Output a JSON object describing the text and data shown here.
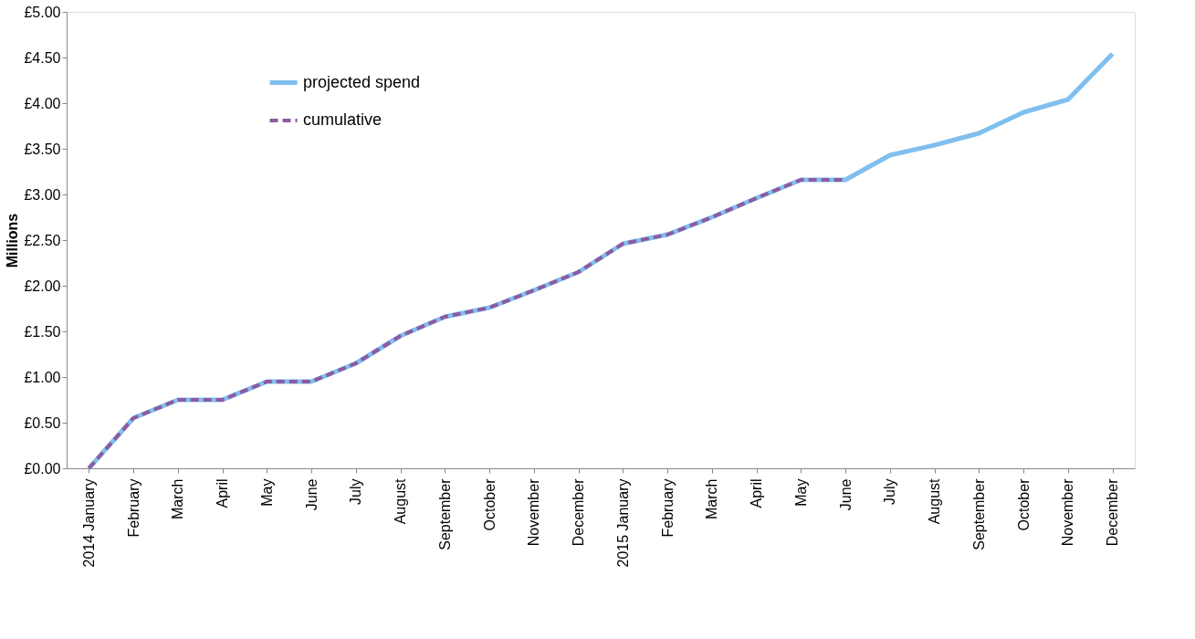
{
  "chart_data": {
    "type": "line",
    "ylabel": "Millions",
    "categories": [
      "2014 January",
      "February",
      "March",
      "April",
      "May",
      "June",
      "July",
      "August",
      "September",
      "October",
      "November",
      "December",
      "2015 January",
      "February",
      "March",
      "April",
      "May",
      "June",
      "July",
      "August",
      "September",
      "October",
      "November",
      "December"
    ],
    "series": [
      {
        "name": "projected spend",
        "color": "#7fbfef",
        "line_style": "solid",
        "values": [
          0,
          0.55,
          0.75,
          0.75,
          0.95,
          0.95,
          1.15,
          1.45,
          1.66,
          1.76,
          1.95,
          2.15,
          2.46,
          2.56,
          2.75,
          2.96,
          3.16,
          3.16,
          3.43,
          3.54,
          3.67,
          3.9,
          4.04,
          4.54
        ]
      },
      {
        "name": "cumulative",
        "color": "#8e5aa0",
        "line_style": "dashed",
        "values": [
          0,
          0.55,
          0.75,
          0.75,
          0.95,
          0.95,
          1.15,
          1.45,
          1.66,
          1.76,
          1.95,
          2.15,
          2.46,
          2.56,
          2.75,
          2.96,
          3.16,
          3.16,
          null,
          null,
          null,
          null,
          null,
          null
        ]
      }
    ],
    "ylim": [
      0,
      5
    ],
    "yticks": [
      {
        "value": 0,
        "label": "£0.00"
      },
      {
        "value": 0.5,
        "label": "£0.50"
      },
      {
        "value": 1,
        "label": "£1.00"
      },
      {
        "value": 1.5,
        "label": "£1.50"
      },
      {
        "value": 2,
        "label": "£2.00"
      },
      {
        "value": 2.5,
        "label": "£2.50"
      },
      {
        "value": 3,
        "label": "£3.00"
      },
      {
        "value": 3.5,
        "label": "£3.50"
      },
      {
        "value": 4,
        "label": "£4.00"
      },
      {
        "value": 4.5,
        "label": "£4.50"
      },
      {
        "value": 5,
        "label": "£5.00"
      }
    ],
    "grid": false,
    "legend": "top left",
    "marker": "none"
  }
}
